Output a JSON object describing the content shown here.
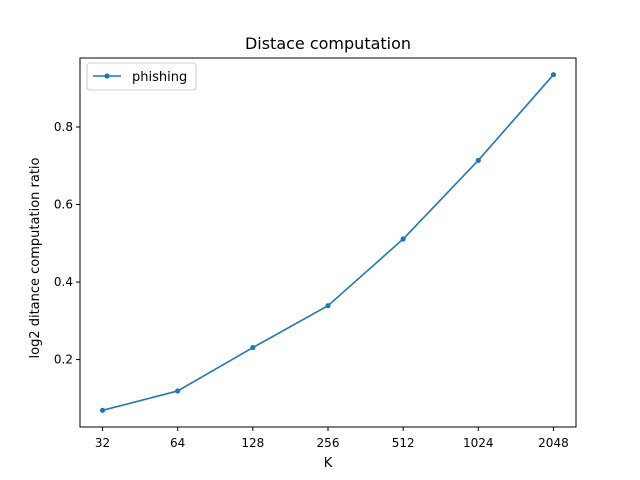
{
  "chart_data": {
    "type": "line",
    "title": "Distace computation",
    "xlabel": "K",
    "ylabel": "log2 ditance computation ratio",
    "categories": [
      "32",
      "64",
      "128",
      "256",
      "512",
      "1024",
      "2048"
    ],
    "series": [
      {
        "name": "phishing",
        "values": [
          0.069,
          0.119,
          0.231,
          0.339,
          0.511,
          0.714,
          0.935
        ],
        "color": "#1f77b4",
        "marker": "point"
      }
    ],
    "yticks": [
      0.2,
      0.4,
      0.6,
      0.8
    ],
    "ylim": [
      0.026,
      0.978
    ],
    "grid": false,
    "legend_position": "top-left"
  }
}
